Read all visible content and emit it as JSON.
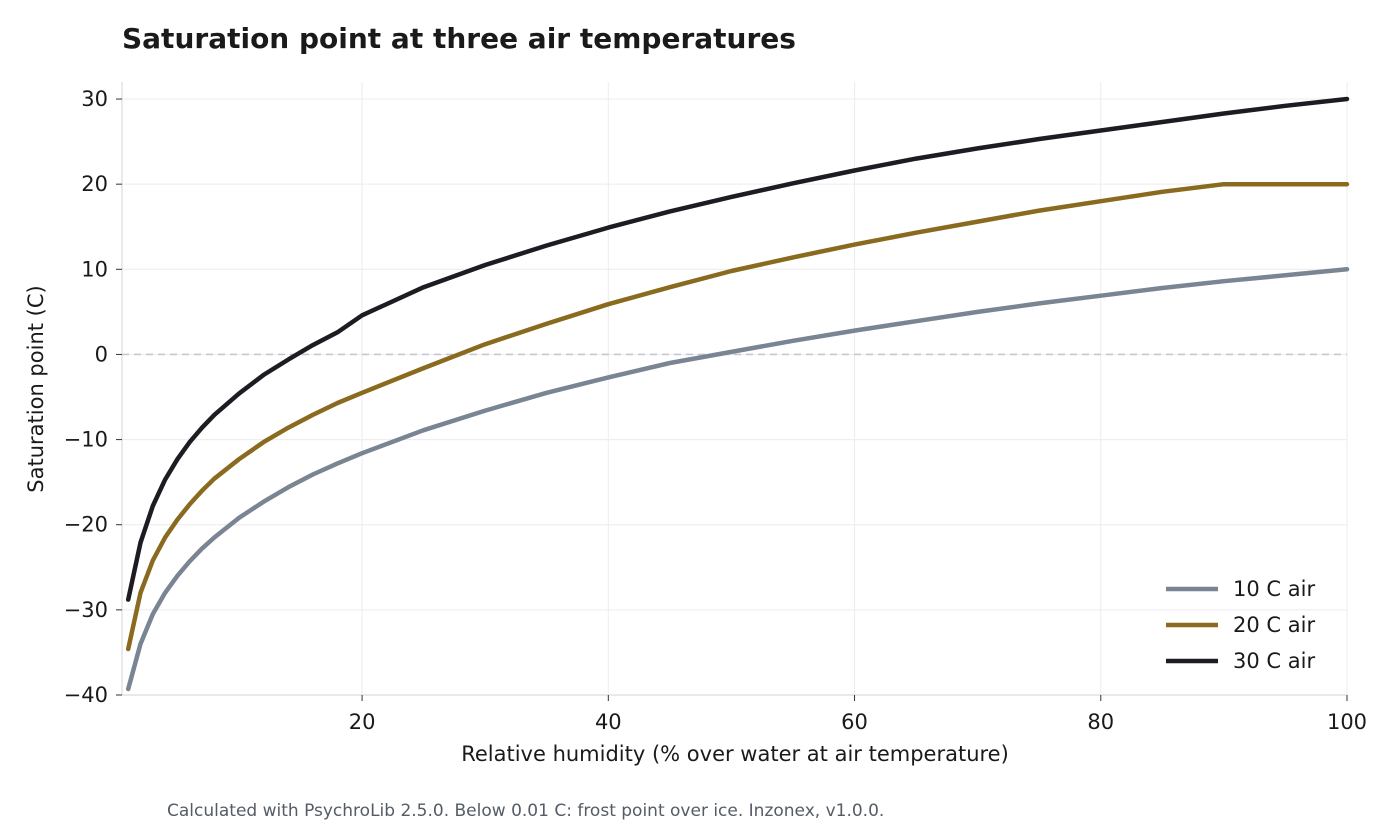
{
  "chart_data": {
    "type": "line",
    "title": "Saturation point at three air temperatures",
    "xlabel": "Relative humidity (% over water at air temperature)",
    "ylabel": "Saturation point (C)",
    "xlim": [
      0.5,
      100
    ],
    "ylim": [
      -40,
      32
    ],
    "xticks": [
      20,
      40,
      60,
      80,
      100
    ],
    "yticks": [
      -40,
      -30,
      -20,
      -10,
      0,
      10,
      20,
      30
    ],
    "grid": true,
    "reference_line": {
      "y": 0,
      "style": "dashed"
    },
    "legend_position": "bottom-right",
    "x": [
      1,
      2,
      3,
      4,
      5,
      6,
      7,
      8,
      10,
      12,
      14,
      16,
      18,
      20,
      25,
      30,
      35,
      40,
      45,
      50,
      55,
      60,
      65,
      70,
      75,
      80,
      85,
      90,
      95,
      100
    ],
    "series": [
      {
        "name": "10 C air",
        "color": "#7a8593",
        "values": [
          -39.3,
          -34.0,
          -30.5,
          -28.0,
          -26.0,
          -24.3,
          -22.8,
          -21.5,
          -19.2,
          -17.3,
          -15.6,
          -14.1,
          -12.8,
          -11.6,
          -8.9,
          -6.6,
          -4.5,
          -2.7,
          -1.0,
          0.3,
          1.6,
          2.8,
          3.9,
          5.0,
          6.0,
          6.9,
          7.8,
          8.6,
          9.3,
          10.0
        ]
      },
      {
        "name": "20 C air",
        "color": "#8a6a1f",
        "values": [
          -34.6,
          -28.0,
          -24.2,
          -21.5,
          -19.4,
          -17.6,
          -16.0,
          -14.6,
          -12.3,
          -10.3,
          -8.6,
          -7.1,
          -5.7,
          -4.5,
          -1.6,
          1.2,
          3.6,
          5.9,
          7.9,
          9.8,
          11.4,
          12.9,
          14.3,
          15.6,
          16.9,
          18.0,
          19.1,
          20.0,
          20.0,
          20.0
        ]
      },
      {
        "name": "30 C air",
        "color": "#1c1c22",
        "values": [
          -28.8,
          -22.1,
          -17.8,
          -14.7,
          -12.3,
          -10.3,
          -8.6,
          -7.1,
          -4.6,
          -2.4,
          -0.6,
          1.1,
          2.6,
          4.6,
          7.9,
          10.5,
          12.8,
          14.9,
          16.8,
          18.5,
          20.1,
          21.6,
          23.0,
          24.2,
          25.3,
          26.3,
          27.3,
          28.3,
          29.2,
          30.0
        ]
      }
    ],
    "footnote": "Calculated with PsychroLib 2.5.0. Below 0.01 C: frost point over ice. Inzonex, v1.0.0."
  }
}
